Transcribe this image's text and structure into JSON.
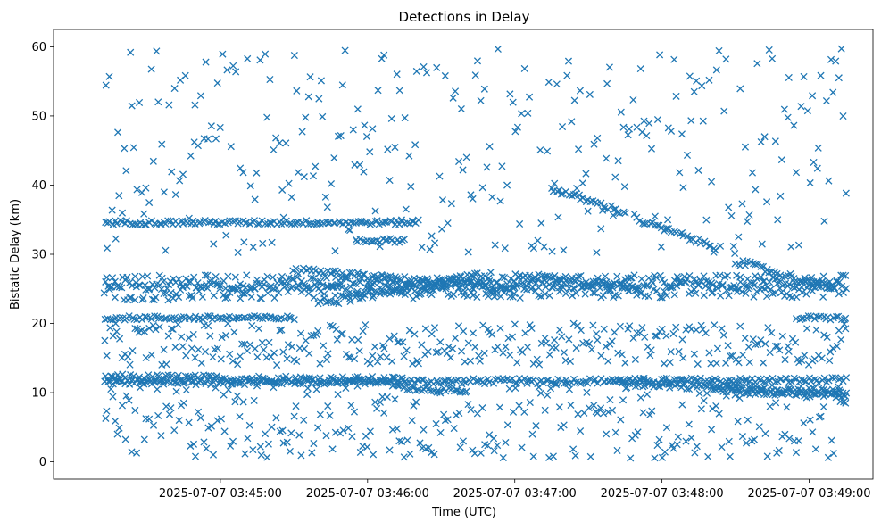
{
  "chart_data": {
    "type": "scatter",
    "title": "Detections in Delay",
    "xlabel": "Time (UTC)",
    "ylabel": "Bistatic Delay (km)",
    "marker": "x",
    "color": "#1f77b4",
    "x_time_range": [
      "2025-07-07 03:44:13",
      "2025-07-07 03:49:15"
    ],
    "xlim": [
      "2025-07-07 03:43:52",
      "2025-07-07 03:49:26"
    ],
    "ylim": [
      -2.5,
      62.5
    ],
    "x_ticks": [
      "2025-07-07 03:45:00",
      "2025-07-07 03:46:00",
      "2025-07-07 03:47:00",
      "2025-07-07 03:48:00",
      "2025-07-07 03:49:00"
    ],
    "y_ticks": [
      "0",
      "10",
      "20",
      "30",
      "40",
      "50",
      "60"
    ],
    "grid": false,
    "legend": "none",
    "tracks": [
      {
        "t0": "2025-07-07 03:44:13",
        "t1": "2025-07-07 03:49:15",
        "y0": 11.5,
        "y1": 11.8,
        "jitter": 0.4
      },
      {
        "t0": "2025-07-07 03:44:13",
        "t1": "2025-07-07 03:46:15",
        "y0": 12.2,
        "y1": 11.8,
        "jitter": 0.5
      },
      {
        "t0": "2025-07-07 03:46:10",
        "t1": "2025-07-07 03:46:40",
        "y0": 11.0,
        "y1": 10.0,
        "jitter": 0.4
      },
      {
        "t0": "2025-07-07 03:47:40",
        "t1": "2025-07-07 03:49:15",
        "y0": 11.5,
        "y1": 10.0,
        "jitter": 0.5
      },
      {
        "t0": "2025-07-07 03:48:20",
        "t1": "2025-07-07 03:49:15",
        "y0": 10.5,
        "y1": 9.5,
        "jitter": 0.4
      },
      {
        "t0": "2025-07-07 03:44:13",
        "t1": "2025-07-07 03:49:15",
        "y0": 24.5,
        "y1": 25.0,
        "jitter": 1.2
      },
      {
        "t0": "2025-07-07 03:44:13",
        "t1": "2025-07-07 03:49:15",
        "y0": 26.0,
        "y1": 26.0,
        "jitter": 1.0
      },
      {
        "t0": "2025-07-07 03:45:30",
        "t1": "2025-07-07 03:47:00",
        "y0": 27.5,
        "y1": 25.0,
        "jitter": 0.6
      },
      {
        "t0": "2025-07-07 03:45:40",
        "t1": "2025-07-07 03:46:50",
        "y0": 23.0,
        "y1": 27.0,
        "jitter": 0.6
      },
      {
        "t0": "2025-07-07 03:47:00",
        "t1": "2025-07-07 03:47:50",
        "y0": 27.0,
        "y1": 25.0,
        "jitter": 0.5
      },
      {
        "t0": "2025-07-07 03:44:13",
        "t1": "2025-07-07 03:45:30",
        "y0": 20.8,
        "y1": 20.8,
        "jitter": 0.3
      },
      {
        "t0": "2025-07-07 03:44:13",
        "t1": "2025-07-07 03:46:20",
        "y0": 34.6,
        "y1": 34.6,
        "jitter": 0.3
      },
      {
        "t0": "2025-07-07 03:45:55",
        "t1": "2025-07-07 03:46:15",
        "y0": 32.0,
        "y1": 32.0,
        "jitter": 0.3
      },
      {
        "t0": "2025-07-07 03:47:15",
        "t1": "2025-07-07 03:47:45",
        "y0": 39.5,
        "y1": 36.0,
        "jitter": 0.4
      },
      {
        "t0": "2025-07-07 03:47:50",
        "t1": "2025-07-07 03:48:22",
        "y0": 35.0,
        "y1": 31.0,
        "jitter": 0.4
      },
      {
        "t0": "2025-07-07 03:48:30",
        "t1": "2025-07-07 03:49:10",
        "y0": 29.0,
        "y1": 25.0,
        "jitter": 0.5
      },
      {
        "t0": "2025-07-07 03:48:55",
        "t1": "2025-07-07 03:49:15",
        "y0": 20.8,
        "y1": 20.8,
        "jitter": 0.3
      },
      {
        "t0": "2025-07-07 03:44:13",
        "t1": "2025-07-07 03:49:15",
        "y0": 6.0,
        "y1": 6.0,
        "jitter": 5.5
      },
      {
        "t0": "2025-07-07 03:44:13",
        "t1": "2025-07-07 03:49:15",
        "y0": 17.0,
        "y1": 17.0,
        "jitter": 3.0
      },
      {
        "t0": "2025-07-07 03:44:13",
        "t1": "2025-07-07 03:49:15",
        "y0": 45.0,
        "y1": 45.0,
        "jitter": 15.0
      }
    ]
  }
}
